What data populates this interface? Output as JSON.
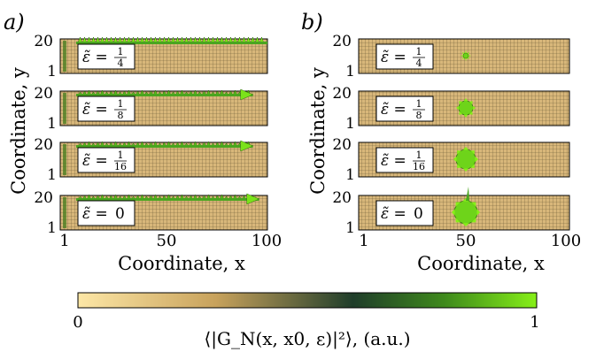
{
  "figure": {
    "panel_a": {
      "label": "a)",
      "xlabel": "Coordinate, x",
      "ylabel": "Coordinate, y",
      "x_ticks": [
        "1",
        "50",
        "100"
      ],
      "y_ticks": [
        "1",
        "20"
      ],
      "strips": [
        {
          "label": "ε̃ = 1/4",
          "eps_num": "1",
          "eps_den": "4"
        },
        {
          "label": "ε̃ = 1/8",
          "eps_num": "1",
          "eps_den": "8"
        },
        {
          "label": "ε̃ = 1/16",
          "eps_num": "1",
          "eps_den": "16"
        },
        {
          "label": "ε̃ = 0",
          "eps_val": "0"
        }
      ]
    },
    "panel_b": {
      "label": "b)",
      "xlabel": "Coordinate, x",
      "ylabel": "Coordinate, y",
      "x_ticks": [
        "1",
        "50",
        "100"
      ],
      "y_ticks": [
        "1",
        "20"
      ],
      "strips": [
        {
          "label": "ε̃ = 1/4",
          "eps_num": "1",
          "eps_den": "4"
        },
        {
          "label": "ε̃ = 1/8",
          "eps_num": "1",
          "eps_den": "8"
        },
        {
          "label": "ε̃ = 1/16",
          "eps_num": "1",
          "eps_den": "16"
        },
        {
          "label": "ε̃ = 0",
          "eps_val": "0"
        }
      ]
    },
    "colorbar": {
      "min_label": "0",
      "max_label": "1",
      "label": "⟨|G_N(x, x0, ε)|²⟩, (a.u.)",
      "colors": [
        "#fde7a6",
        "#c8a25c",
        "#1f3d2a",
        "#3f8a1c",
        "#86ef18"
      ]
    }
  },
  "chart_data": {
    "type": "heatmap",
    "grid": {
      "x_range": [
        1,
        100
      ],
      "y_range": [
        1,
        20
      ]
    },
    "panel_a_profile": "edge-localized intensity along y=20 across x",
    "panel_b_profile": "bulk-localized spot near x=50, y=10",
    "color_range": [
      0,
      1
    ]
  }
}
